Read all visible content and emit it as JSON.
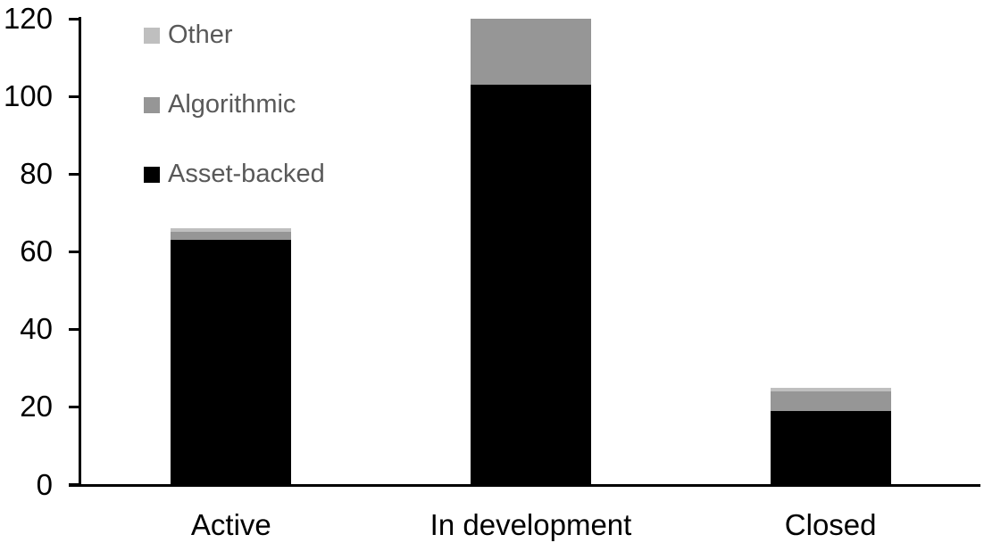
{
  "chart_data": {
    "type": "bar",
    "stacked": true,
    "title": "",
    "xlabel": "",
    "ylabel": "",
    "categories": [
      "Active",
      "In development",
      "Closed"
    ],
    "series": [
      {
        "name": "Asset-backed",
        "color": "#000000",
        "values": [
          63,
          103,
          19
        ]
      },
      {
        "name": "Algorithmic",
        "color": "#969696",
        "values": [
          2,
          17,
          5
        ]
      },
      {
        "name": "Other",
        "color": "#bfbfbf",
        "values": [
          1,
          0,
          1
        ]
      }
    ],
    "stack_totals": [
      66,
      120,
      25
    ],
    "ylim": [
      0,
      120
    ],
    "yticks": [
      0,
      20,
      40,
      60,
      80,
      100,
      120
    ],
    "grid": false,
    "legend": {
      "position": "top-left",
      "entries": [
        {
          "label": "Other",
          "color": "#bfbfbf"
        },
        {
          "label": "Algorithmic",
          "color": "#969696"
        },
        {
          "label": "Asset-backed",
          "color": "#000000"
        }
      ]
    },
    "colors": {
      "background": "#ffffff",
      "axis": "#000000",
      "tick_labels": "#000000",
      "category_labels": "#000000",
      "legend_text": "#595959"
    }
  }
}
